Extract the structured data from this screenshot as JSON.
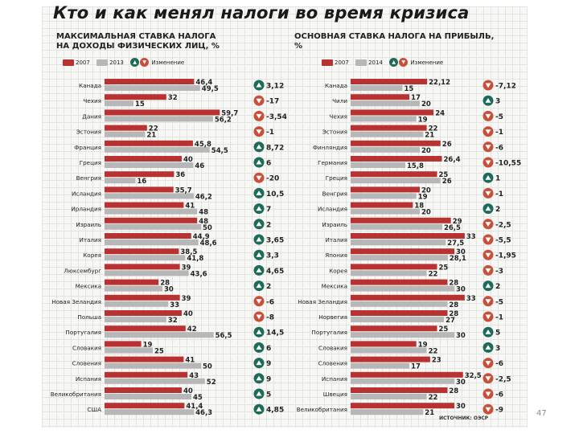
{
  "title": "Кто и как менял налоги во время кризиса",
  "page_number": "47",
  "source": "ИСТОЧНИК: ОЭСР",
  "colors": {
    "red": "#b83232",
    "gray": "#b7b7b7",
    "green": "#1f6b5a",
    "orange": "#c8503a"
  },
  "chart_data": [
    {
      "type": "bar",
      "orientation": "horizontal",
      "title": "МАКСИМАЛЬНАЯ СТАВКА НАЛОГА НА ДОХОДЫ ФИЗИЧЕСКИХ ЛИЦ, %",
      "title_lines": [
        "МАКСИМАЛЬНАЯ СТАВКА НАЛОГА",
        "НА ДОХОДЫ ФИЗИЧЕСКИХ ЛИЦ, %"
      ],
      "legend": {
        "series1": "2007",
        "series2": "2013",
        "change": "Изменение"
      },
      "xlim": [
        0,
        60
      ],
      "categories": [
        "Канада",
        "Чехия",
        "Дания",
        "Эстония",
        "Франция",
        "Греция",
        "Венгрия",
        "Исландия",
        "Ирландия",
        "Израиль",
        "Италия",
        "Корея",
        "Люксембург",
        "Мексика",
        "Новая Зеландия",
        "Польша",
        "Португалия",
        "Словакия",
        "Словения",
        "Испания",
        "Великобритания",
        "США"
      ],
      "series": [
        {
          "name": "2007",
          "values": [
            46.4,
            32,
            59.7,
            22,
            45.8,
            40,
            36,
            35.7,
            41,
            48,
            44.9,
            38.5,
            39,
            28,
            39,
            40,
            42,
            19,
            41,
            43,
            40,
            41.4
          ]
        },
        {
          "name": "2013",
          "values": [
            49.5,
            15,
            56.2,
            21,
            54.5,
            46,
            16,
            46.2,
            48,
            50,
            48.6,
            41.8,
            43.6,
            30,
            33,
            32,
            56.5,
            25,
            50,
            52,
            45,
            46.3
          ]
        }
      ],
      "value_labels": {
        "s1": [
          "46,4",
          "32",
          "59,7",
          "22",
          "45,8",
          "40",
          "36",
          "35,7",
          "41",
          "48",
          "44,9",
          "38,5",
          "39",
          "28",
          "39",
          "40",
          "42",
          "19",
          "41",
          "43",
          "40",
          "41,4"
        ],
        "s2": [
          "49,5",
          "15",
          "56,2",
          "21",
          "54,5",
          "46",
          "16",
          "46,2",
          "48",
          "50",
          "48,6",
          "41,8",
          "43,6",
          "30",
          "33",
          "32",
          "56,5",
          "25",
          "50",
          "52",
          "45",
          "46,3"
        ]
      },
      "change": [
        "3,12",
        "-17",
        "-3,54",
        "-1",
        "8,72",
        "6",
        "-20",
        "10,5",
        "7",
        "2",
        "3,65",
        "3,3",
        "4,65",
        "2",
        "-6",
        "-8",
        "14,5",
        "6",
        "9",
        "9",
        "5",
        "4,85"
      ],
      "change_direction": [
        "up",
        "down",
        "down",
        "down",
        "up",
        "up",
        "down",
        "up",
        "up",
        "up",
        "up",
        "up",
        "up",
        "up",
        "down",
        "down",
        "up",
        "up",
        "up",
        "up",
        "up",
        "up"
      ]
    },
    {
      "type": "bar",
      "orientation": "horizontal",
      "title": "ОСНОВНАЯ СТАВКА НАЛОГА НА ПРИБЫЛЬ, %",
      "title_lines": [
        "ОСНОВНАЯ СТАВКА НАЛОГА НА ПРИБЫЛЬ,",
        "%"
      ],
      "legend": {
        "series1": "2007",
        "series2": "2014",
        "change": "Изменение"
      },
      "xlim": [
        0,
        35
      ],
      "categories": [
        "Канада",
        "Чили",
        "Чехия",
        "Эстония",
        "Финляндия",
        "Германия",
        "Греция",
        "Венгрия",
        "Исландия",
        "Израиль",
        "Италия",
        "Япония",
        "Корея",
        "Мексика",
        "Новая Зеландия",
        "Норвегия",
        "Португалия",
        "Словакия",
        "Словения",
        "Испания",
        "Швеция",
        "Великобритания"
      ],
      "series": [
        {
          "name": "2007",
          "values": [
            22.12,
            17,
            24,
            22,
            26,
            26.4,
            25,
            20,
            18,
            29,
            33,
            30,
            25,
            28,
            33,
            28,
            25,
            19,
            23,
            32.5,
            28,
            30
          ]
        },
        {
          "name": "2014",
          "values": [
            15,
            20,
            19,
            21,
            20,
            15.8,
            26,
            19,
            20,
            26.5,
            27.5,
            28.1,
            22,
            30,
            28,
            27,
            30,
            22,
            17,
            30,
            22,
            21
          ]
        }
      ],
      "value_labels": {
        "s1": [
          "22,12",
          "17",
          "24",
          "22",
          "26",
          "26,4",
          "25",
          "20",
          "18",
          "29",
          "33",
          "30",
          "25",
          "28",
          "33",
          "28",
          "25",
          "19",
          "23",
          "32,5",
          "28",
          "30"
        ],
        "s2": [
          "15",
          "20",
          "19",
          "21",
          "20",
          "15,8",
          "26",
          "19",
          "20",
          "26,5",
          "27,5",
          "28,1",
          "22",
          "30",
          "28",
          "27",
          "30",
          "22",
          "17",
          "30",
          "22",
          "21"
        ]
      },
      "change": [
        "-7,12",
        "3",
        "-5",
        "-1",
        "-6",
        "-10,55",
        "1",
        "-1",
        "2",
        "-2,5",
        "-5,5",
        "-1,95",
        "-3",
        "2",
        "-5",
        "-1",
        "5",
        "3",
        "-6",
        "-2,5",
        "-6",
        "-9"
      ],
      "change_direction": [
        "down",
        "up",
        "down",
        "down",
        "down",
        "down",
        "up",
        "down",
        "up",
        "down",
        "down",
        "down",
        "down",
        "up",
        "down",
        "down",
        "up",
        "up",
        "down",
        "down",
        "down",
        "down"
      ]
    }
  ]
}
